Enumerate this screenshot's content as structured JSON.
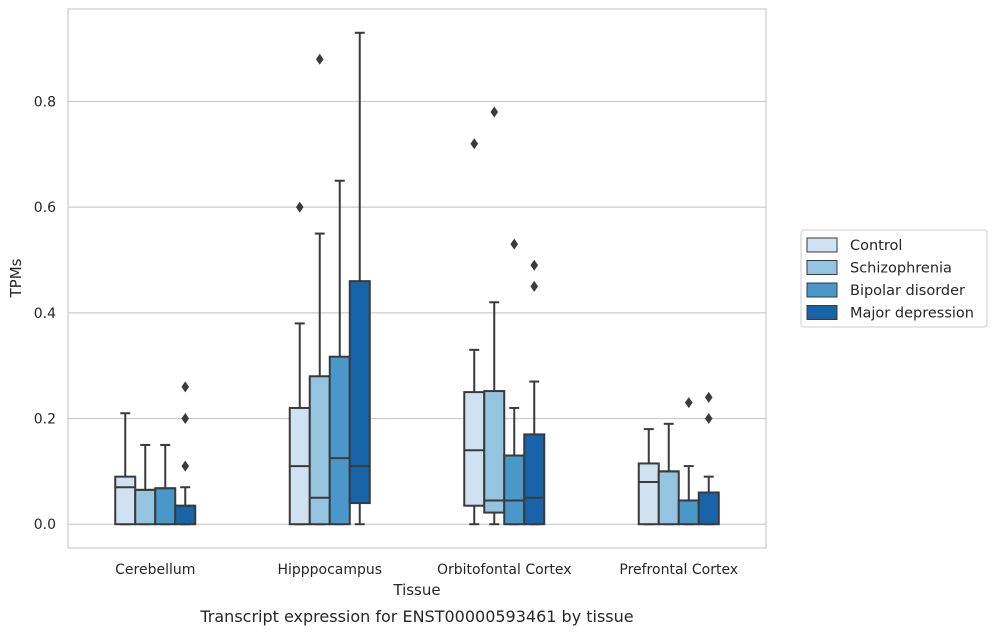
{
  "chart_data": {
    "type": "box",
    "title": "",
    "caption": "Transcript expression for ENST00000593461 by tissue",
    "xlabel": "Tissue",
    "ylabel": "TPMs",
    "ylim": [
      -0.045,
      0.975
    ],
    "yticks": [
      "0.0",
      "0.2",
      "0.4",
      "0.6",
      "0.8"
    ],
    "grid": "horizontal",
    "legend_position": "right",
    "categories": [
      "Cerebellum",
      "Hipppocampus",
      "Orbitofontal Cortex",
      "Prefrontal Cortex"
    ],
    "series": [
      {
        "name": "Control",
        "color": "#d0e1f2",
        "boxes": [
          {
            "whislo": 0.0,
            "q1": 0.0,
            "med": 0.07,
            "q3": 0.09,
            "whishi": 0.21,
            "fliers": []
          },
          {
            "whislo": 0.0,
            "q1": 0.0,
            "med": 0.11,
            "q3": 0.22,
            "whishi": 0.38,
            "fliers": [
              0.6
            ]
          },
          {
            "whislo": 0.0,
            "q1": 0.035,
            "med": 0.14,
            "q3": 0.25,
            "whishi": 0.33,
            "fliers": [
              0.72
            ]
          },
          {
            "whislo": 0.0,
            "q1": 0.0,
            "med": 0.08,
            "q3": 0.115,
            "whishi": 0.18,
            "fliers": []
          }
        ]
      },
      {
        "name": "Schizophrenia",
        "color": "#94c4df",
        "boxes": [
          {
            "whislo": 0.0,
            "q1": 0.0,
            "med": 0.065,
            "q3": 0.065,
            "whishi": 0.15,
            "fliers": []
          },
          {
            "whislo": 0.0,
            "q1": 0.0,
            "med": 0.05,
            "q3": 0.28,
            "whishi": 0.55,
            "fliers": [
              0.88
            ]
          },
          {
            "whislo": 0.0,
            "q1": 0.022,
            "med": 0.045,
            "q3": 0.252,
            "whishi": 0.42,
            "fliers": [
              0.78
            ]
          },
          {
            "whislo": 0.0,
            "q1": 0.0,
            "med": 0.1,
            "q3": 0.1,
            "whishi": 0.19,
            "fliers": []
          }
        ]
      },
      {
        "name": "Bipolar disorder",
        "color": "#4a98c9",
        "boxes": [
          {
            "whislo": 0.0,
            "q1": 0.0,
            "med": 0.068,
            "q3": 0.068,
            "whishi": 0.15,
            "fliers": []
          },
          {
            "whislo": 0.0,
            "q1": 0.0,
            "med": 0.125,
            "q3": 0.317,
            "whishi": 0.65,
            "fliers": []
          },
          {
            "whislo": 0.0,
            "q1": 0.0,
            "med": 0.045,
            "q3": 0.13,
            "whishi": 0.22,
            "fliers": [
              0.53
            ]
          },
          {
            "whislo": 0.0,
            "q1": 0.0,
            "med": 0.045,
            "q3": 0.045,
            "whishi": 0.11,
            "fliers": [
              0.23
            ]
          }
        ]
      },
      {
        "name": "Major depression",
        "color": "#1764ab",
        "boxes": [
          {
            "whislo": 0.0,
            "q1": 0.0,
            "med": 0.035,
            "q3": 0.035,
            "whishi": 0.07,
            "fliers": [
              0.11,
              0.2,
              0.26
            ]
          },
          {
            "whislo": 0.0,
            "q1": 0.04,
            "med": 0.11,
            "q3": 0.46,
            "whishi": 0.93,
            "fliers": []
          },
          {
            "whislo": 0.0,
            "q1": 0.0,
            "med": 0.05,
            "q3": 0.17,
            "whishi": 0.27,
            "fliers": [
              0.45,
              0.49
            ]
          },
          {
            "whislo": 0.0,
            "q1": 0.0,
            "med": 0.06,
            "q3": 0.06,
            "whishi": 0.09,
            "fliers": [
              0.2,
              0.24
            ]
          }
        ]
      }
    ]
  }
}
